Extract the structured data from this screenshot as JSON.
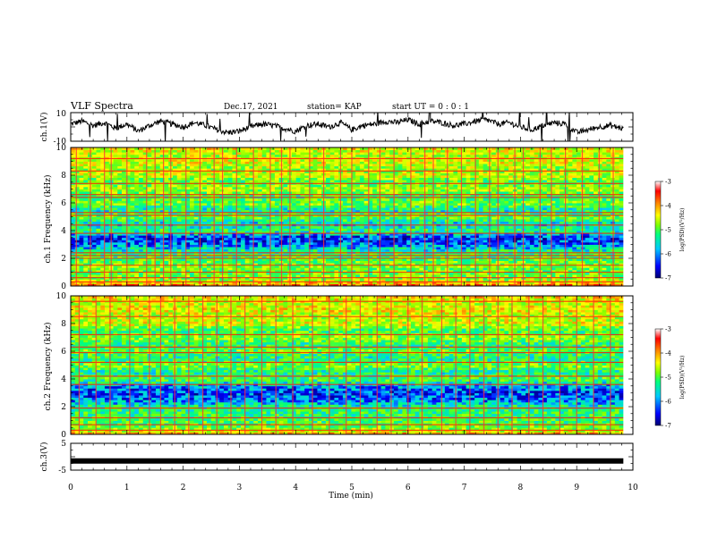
{
  "header": {
    "title": "VLF Spectra",
    "date": "Dec.17, 2021",
    "station": "station= KAP",
    "start": "start  UT =   0 : 0  : 1"
  },
  "chart_data": [
    {
      "type": "line",
      "panel": "ch1-waveform",
      "ylabel": "ch.1(V)",
      "xlim": [
        0,
        9.83
      ],
      "ylim": [
        -10,
        10
      ],
      "yticks": [
        {
          "value": 10,
          "label": "10"
        },
        {
          "value": -10,
          "label": "-10"
        }
      ],
      "x": [
        0.0,
        0.2,
        0.4,
        0.6,
        0.8,
        1.0,
        1.2,
        1.4,
        1.6,
        1.8,
        2.0,
        2.2,
        2.4,
        2.6,
        2.8,
        3.0,
        3.2,
        3.4,
        3.6,
        3.8,
        4.0,
        4.2,
        4.4,
        4.6,
        4.8,
        5.0,
        5.2,
        5.4,
        5.6,
        5.8,
        6.0,
        6.2,
        6.4,
        6.6,
        6.8,
        7.0,
        7.2,
        7.4,
        7.6,
        7.8,
        8.0,
        8.2,
        8.4,
        8.6,
        8.8,
        9.0,
        9.2,
        9.4,
        9.6,
        9.8
      ],
      "values": [
        2,
        4,
        1,
        3,
        -1,
        2,
        -3,
        1,
        4,
        2,
        0,
        3,
        1,
        -2,
        -4,
        -3,
        0,
        2,
        1,
        -1,
        -3,
        1,
        2,
        0,
        3,
        -2,
        1,
        2,
        4,
        3,
        5,
        2,
        4,
        3,
        1,
        2,
        4,
        5,
        2,
        3,
        0,
        -2,
        1,
        3,
        2,
        -4,
        -2,
        0,
        1,
        -1
      ],
      "color": "#000000"
    },
    {
      "type": "heatmap",
      "panel": "ch1-spectrogram",
      "ylabel": "ch.1 Frequency (kHz)",
      "xlim": [
        0,
        9.83
      ],
      "ylim": [
        0,
        10
      ],
      "yticks": [
        0,
        2,
        4,
        6,
        8,
        10
      ],
      "color_range": [
        -7,
        -3
      ],
      "colorbar_ticks": [
        -3,
        -4,
        -5,
        -6,
        -7
      ],
      "colorbar_label": "log(PSD)(V²/Hz)",
      "colormap": [
        "#000070",
        "#0000ff",
        "#00c8ff",
        "#00ff80",
        "#80ff00",
        "#ffff00",
        "#ff8000",
        "#ff0000",
        "#ffffff"
      ],
      "band_profile": {
        "freq_khz": [
          0.0,
          0.5,
          1.0,
          1.5,
          2.0,
          2.5,
          3.0,
          3.5,
          4.0,
          4.5,
          5.0,
          5.5,
          6.0,
          6.5,
          7.0,
          7.5,
          8.0,
          8.5,
          9.0,
          9.5,
          10.0
        ],
        "log_psd": [
          -3.8,
          -5.0,
          -5.2,
          -5.0,
          -5.3,
          -5.5,
          -6.2,
          -6.5,
          -5.4,
          -5.8,
          -5.1,
          -5.7,
          -5.0,
          -5.4,
          -4.8,
          -5.3,
          -4.7,
          -4.9,
          -4.6,
          -4.8,
          -4.5
        ]
      },
      "tone_lines_khz": [
        0.3,
        0.6,
        1.0,
        1.5,
        2.0,
        2.2,
        2.4,
        3.8,
        4.4,
        5.1,
        5.3,
        6.4,
        6.6,
        7.4,
        8.3,
        9.2
      ],
      "sferic_times_min": [
        0.1,
        0.35,
        0.6,
        0.72,
        1.0,
        1.35,
        1.5,
        1.65,
        1.78,
        2.05,
        2.3,
        2.55,
        2.7,
        2.95,
        3.25,
        3.55,
        3.75,
        3.9,
        4.25,
        4.5,
        4.8,
        5.0,
        5.3,
        5.5,
        5.75,
        6.05,
        6.3,
        6.45,
        6.7,
        6.95,
        7.2,
        7.45,
        7.6,
        7.9,
        8.05,
        8.35,
        8.55,
        8.8,
        9.1,
        9.4,
        9.65
      ]
    },
    {
      "type": "heatmap",
      "panel": "ch2-spectrogram",
      "ylabel": "ch.2 Frequency (kHz)",
      "xlim": [
        0,
        9.83
      ],
      "ylim": [
        0,
        10
      ],
      "yticks": [
        0,
        2,
        4,
        6,
        8,
        10
      ],
      "color_range": [
        -7,
        -3
      ],
      "colorbar_ticks": [
        -3,
        -4,
        -5,
        -6,
        -7
      ],
      "colorbar_label": "log(PSD)(V²/Hz)",
      "colormap": [
        "#000070",
        "#0000ff",
        "#00c8ff",
        "#00ff80",
        "#80ff00",
        "#ffff00",
        "#ff8000",
        "#ff0000",
        "#ffffff"
      ],
      "band_profile": {
        "freq_khz": [
          0.0,
          0.5,
          1.0,
          1.5,
          2.0,
          2.5,
          3.0,
          3.5,
          4.0,
          4.5,
          5.0,
          5.5,
          6.0,
          6.5,
          7.0,
          7.5,
          8.0,
          8.5,
          9.0,
          9.5,
          10.0
        ],
        "log_psd": [
          -4.2,
          -5.1,
          -5.3,
          -5.4,
          -5.5,
          -6.2,
          -6.4,
          -6.1,
          -5.2,
          -5.6,
          -5.0,
          -5.6,
          -5.1,
          -5.5,
          -4.9,
          -5.4,
          -4.6,
          -4.8,
          -4.5,
          -4.7,
          -4.4
        ]
      },
      "tone_lines_khz": [
        0.3,
        0.7,
        1.2,
        1.9,
        3.6,
        4.2,
        5.2,
        5.9,
        6.3,
        7.2,
        8.5,
        9.6
      ],
      "sferic_times_min": [
        0.15,
        0.45,
        0.7,
        1.05,
        1.4,
        1.6,
        1.85,
        2.1,
        2.35,
        2.6,
        2.85,
        3.1,
        3.4,
        3.65,
        3.95,
        4.3,
        4.6,
        4.9,
        5.15,
        5.45,
        5.7,
        6.0,
        6.25,
        6.6,
        6.85,
        7.1,
        7.35,
        7.6,
        7.85,
        8.15,
        8.4,
        8.7,
        9.0,
        9.3,
        9.6
      ]
    },
    {
      "type": "line",
      "panel": "ch3-waveform",
      "ylabel": "ch.3(V)",
      "xlabel": "Time  (min)",
      "xlim": [
        0,
        9.83
      ],
      "ylim": [
        -5,
        5
      ],
      "yticks": [
        {
          "value": 5,
          "label": "5"
        },
        {
          "value": -5,
          "label": "-5"
        }
      ],
      "xticks": [
        0,
        1,
        2,
        3,
        4,
        5,
        6,
        7,
        8,
        9,
        10
      ],
      "x": [
        0.0,
        9.83
      ],
      "values": [
        -1.6,
        -1.6
      ],
      "color": "#000000"
    }
  ]
}
